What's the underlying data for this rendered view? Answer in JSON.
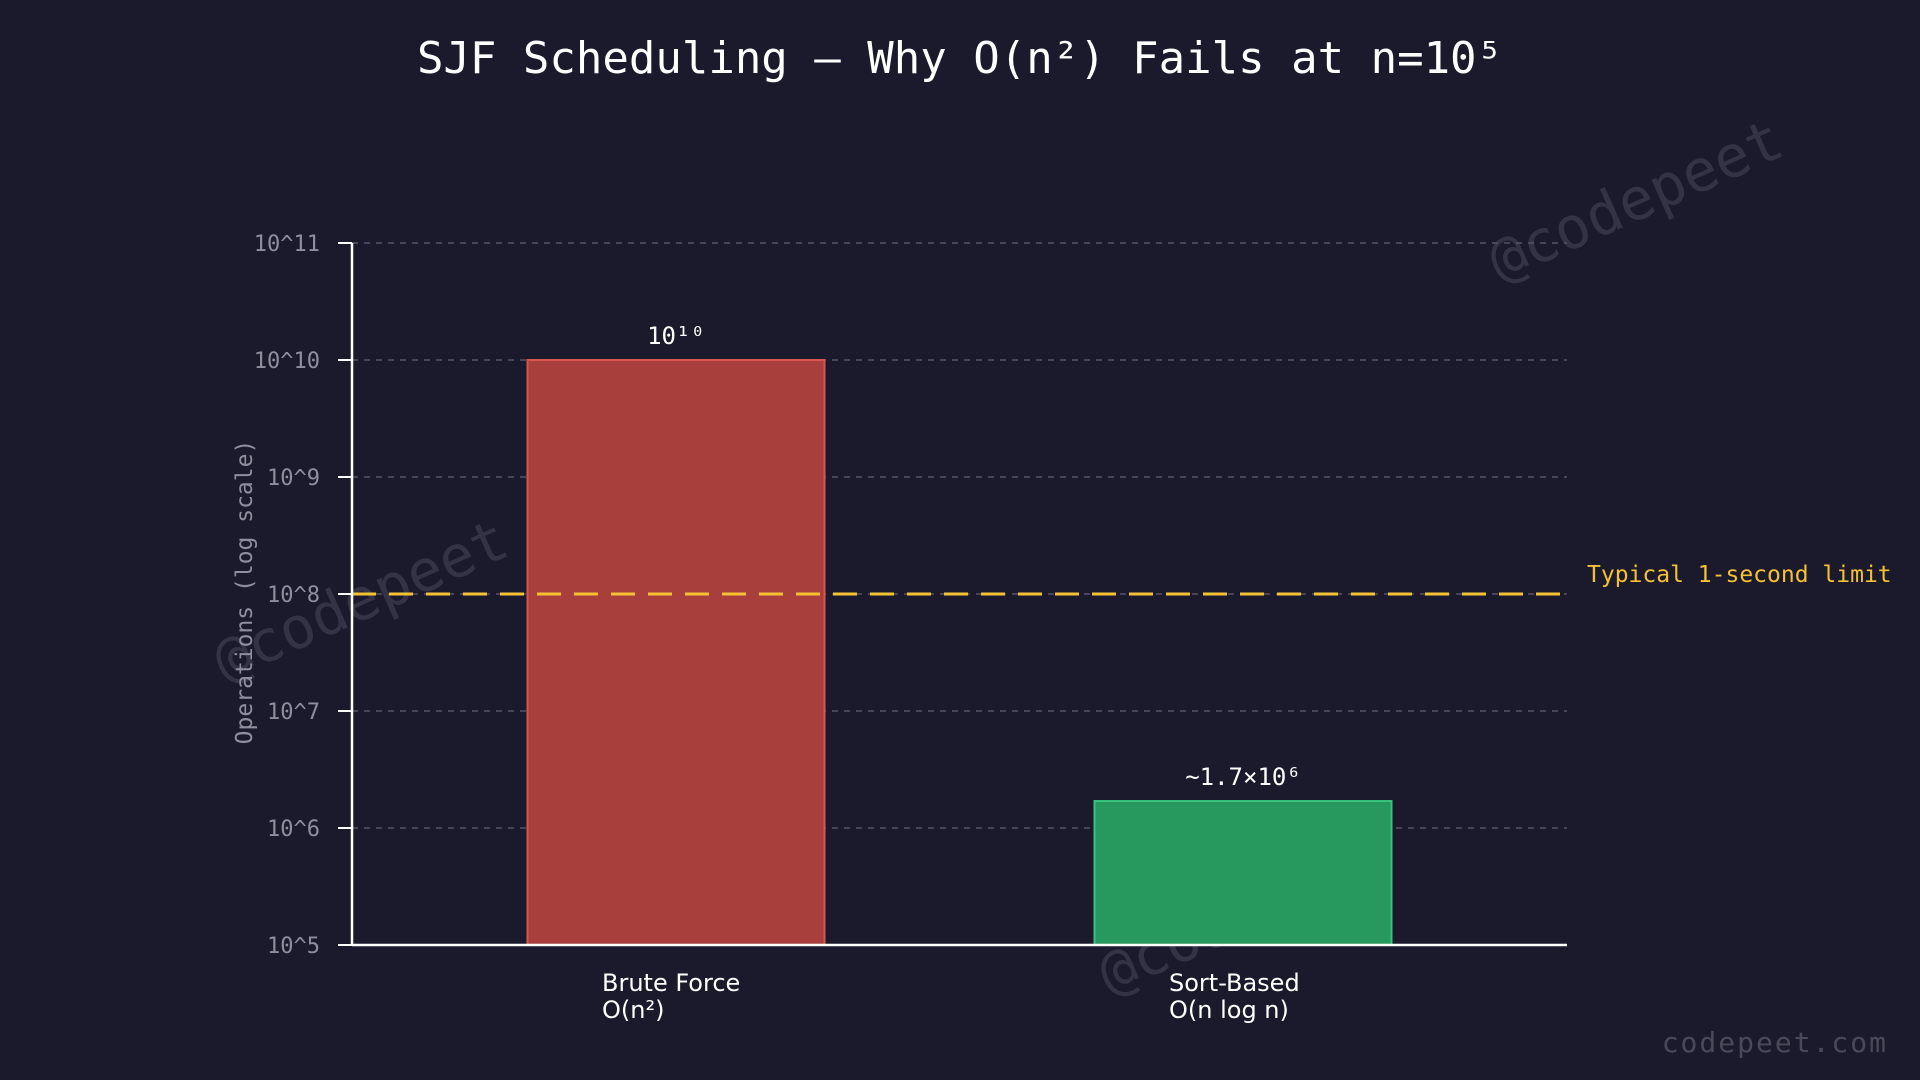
{
  "chart_data": {
    "type": "bar",
    "title": "SJF Scheduling — Why O(n²) Fails at n=10⁵",
    "ylabel": "Operations (log scale)",
    "yscale": "log",
    "ylim": [
      100000,
      100000000000
    ],
    "yticks": [
      {
        "value": 100000,
        "label": "10^5"
      },
      {
        "value": 1000000,
        "label": "10^6"
      },
      {
        "value": 10000000,
        "label": "10^7"
      },
      {
        "value": 100000000,
        "label": "10^8"
      },
      {
        "value": 1000000000,
        "label": "10^9"
      },
      {
        "value": 10000000000,
        "label": "10^10"
      },
      {
        "value": 100000000000,
        "label": "10^11"
      }
    ],
    "grid": true,
    "categories": [
      {
        "line1": "Brute Force",
        "line2": "O(n²)"
      },
      {
        "line1": "Sort-Based",
        "line2": "O(n log n)"
      }
    ],
    "values": [
      10000000000,
      1700000
    ],
    "data_labels": [
      "10¹⁰",
      "~1.7×10⁶"
    ],
    "colors": {
      "bars": [
        "#a83f3d",
        "#27985e"
      ],
      "bar_edges": [
        "#d95550",
        "#35c47a"
      ],
      "reference": "#f4c132",
      "axis": "#ffffff",
      "grid": "#55546a"
    },
    "reference_line": {
      "value": 100000000,
      "label": "Typical 1-second limit"
    }
  },
  "watermarks": [
    "@codepeet",
    "@codepeet",
    "@codepeet"
  ],
  "footer": "codepeet.com"
}
